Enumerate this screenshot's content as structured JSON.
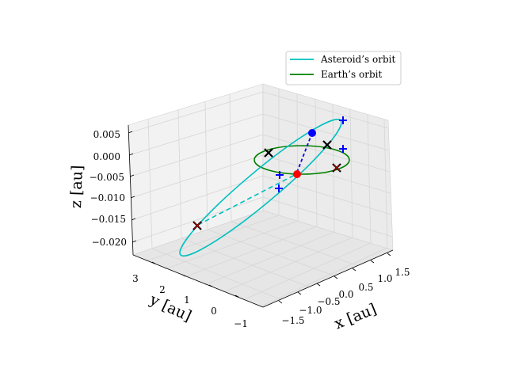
{
  "chart_data": {
    "type": "scatter3d",
    "title": "",
    "xlabel": "$x$ [au]",
    "ylabel": "$y$ [au]",
    "zlabel": "$z$ [au]",
    "xlabel_text": "x [au]",
    "ylabel_text": "y [au]",
    "zlabel_text": "z [au]",
    "x_ticks": [
      "−1.5",
      "−1.0",
      "−0.5",
      "0.0",
      "0.5",
      "1.0",
      "1.5"
    ],
    "y_ticks": [
      "−1",
      "0",
      "1",
      "2",
      "3"
    ],
    "z_ticks": [
      "0.005",
      "0.000",
      "−0.005",
      "−0.010",
      "−0.015",
      "−0.020"
    ],
    "xlim": [
      -1.7,
      1.7
    ],
    "ylim": [
      -1.3,
      3.6
    ],
    "zlim": [
      -0.023,
      0.008
    ],
    "grid": true,
    "legend_position": "upper right",
    "colors": {
      "asteroid_orbit": "#00bfbf",
      "earth_orbit": "#008000",
      "plus_markers": "#0000ff",
      "asteroid_point": "#0000ff",
      "earth_point": "#ff0000",
      "x_markers": "#000000",
      "x_markers_dark_red": "#8b0000",
      "pane": "#f2f2f2",
      "grid": "#d6d6d6"
    },
    "series": [
      {
        "name": "Asteroid’s orbit",
        "kind": "line",
        "color": "#00bfbf"
      },
      {
        "name": "Earth’s orbit",
        "kind": "line",
        "color": "#008000"
      }
    ]
  },
  "legend": {
    "items": [
      {
        "label": "Asteroid’s orbit",
        "color": "#00bfbf"
      },
      {
        "label": "Earth’s orbit",
        "color": "#008000"
      }
    ]
  }
}
